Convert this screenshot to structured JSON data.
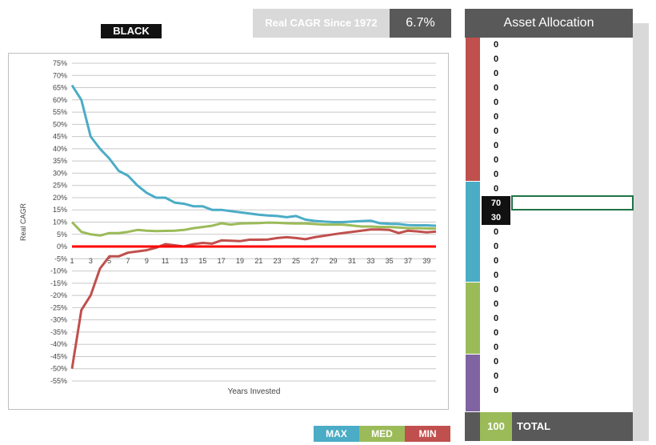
{
  "header": {
    "portfolio_label": "BLACK",
    "cagr_label": "Real CAGR Since 1972",
    "cagr_value": "6.7%"
  },
  "colors": {
    "max": "#4bacc6",
    "med": "#9bbb59",
    "min": "#c0504d",
    "zero_line": "#ff0000",
    "group_1": "#c0504d",
    "group_2": "#4bacc6",
    "group_3": "#9bbb59",
    "group_4": "#8064a2"
  },
  "allocation": {
    "title": "Asset Allocation",
    "values": [
      "0",
      "0",
      "0",
      "0",
      "0",
      "0",
      "0",
      "0",
      "0",
      "0",
      "0",
      "70",
      "30",
      "0",
      "0",
      "0",
      "0",
      "0",
      "0",
      "0",
      "0",
      "0",
      "0",
      "0",
      "0"
    ],
    "selected_indices": [
      11,
      12
    ],
    "total_value": "100",
    "total_label": "TOTAL"
  },
  "legend": {
    "max": "MAX",
    "med": "MED",
    "min": "MIN"
  },
  "chart_data": {
    "type": "line",
    "title": "",
    "xlabel": "Years Invested",
    "ylabel": "Real CAGR",
    "x": [
      1,
      2,
      3,
      4,
      5,
      6,
      7,
      8,
      9,
      10,
      11,
      12,
      13,
      14,
      15,
      16,
      17,
      18,
      19,
      20,
      21,
      22,
      23,
      24,
      25,
      26,
      27,
      28,
      29,
      30,
      31,
      32,
      33,
      34,
      35,
      36,
      37,
      38,
      39,
      40
    ],
    "x_tick_labels": [
      "1",
      "3",
      "5",
      "7",
      "9",
      "11",
      "13",
      "15",
      "17",
      "19",
      "21",
      "23",
      "25",
      "27",
      "29",
      "31",
      "33",
      "35",
      "37",
      "39"
    ],
    "ylim": [
      -55,
      75
    ],
    "y_ticks": [
      75,
      70,
      65,
      60,
      55,
      50,
      45,
      40,
      35,
      30,
      25,
      20,
      15,
      10,
      5,
      0,
      -5,
      -10,
      -15,
      -20,
      -25,
      -30,
      -35,
      -40,
      -45,
      -50,
      -55
    ],
    "y_tick_labels": [
      "75%",
      "70%",
      "65%",
      "60%",
      "55%",
      "50%",
      "45%",
      "40%",
      "35%",
      "30%",
      "25%",
      "20%",
      "15%",
      "10%",
      "5%",
      "0%",
      "-5%",
      "-10%",
      "-15%",
      "-20%",
      "-25%",
      "-30%",
      "-35%",
      "-40%",
      "-45%",
      "-50%",
      "-55%"
    ],
    "series": [
      {
        "name": "MAX",
        "values": [
          66,
          60,
          45,
          40,
          36,
          31,
          29,
          25,
          22,
          20,
          20,
          18,
          17.5,
          16.5,
          16.5,
          15,
          15,
          14.5,
          14,
          13.5,
          13,
          12.7,
          12.5,
          12,
          12.5,
          11,
          10.5,
          10.2,
          10,
          10,
          10.2,
          10.4,
          10.6,
          9.5,
          9.3,
          9.2,
          8.8,
          8.7,
          8.7,
          8.5
        ]
      },
      {
        "name": "MED",
        "values": [
          10,
          6,
          5,
          4.5,
          5.5,
          5.5,
          6,
          6.8,
          6.5,
          6.3,
          6.4,
          6.5,
          6.8,
          7.5,
          8,
          8.5,
          9.5,
          9,
          9.4,
          9.5,
          9.6,
          9.8,
          9.7,
          9.5,
          9.4,
          9.4,
          9.2,
          9,
          9,
          9,
          8.6,
          8.2,
          8.2,
          8,
          8,
          7.8,
          7.5,
          7.5,
          7.4,
          7.3
        ]
      },
      {
        "name": "MIN",
        "values": [
          -50,
          -26,
          -20,
          -9,
          -4,
          -4,
          -2.5,
          -2,
          -1.5,
          -0.5,
          1,
          0.5,
          0,
          1,
          1.5,
          1.2,
          2.5,
          2.4,
          2.2,
          2.8,
          2.8,
          2.9,
          3.5,
          3.8,
          3.5,
          3,
          3.8,
          4.4,
          5,
          5.5,
          6,
          6.5,
          7,
          7,
          6.8,
          5.5,
          6.5,
          6.2,
          5.8,
          6.1
        ]
      }
    ]
  }
}
